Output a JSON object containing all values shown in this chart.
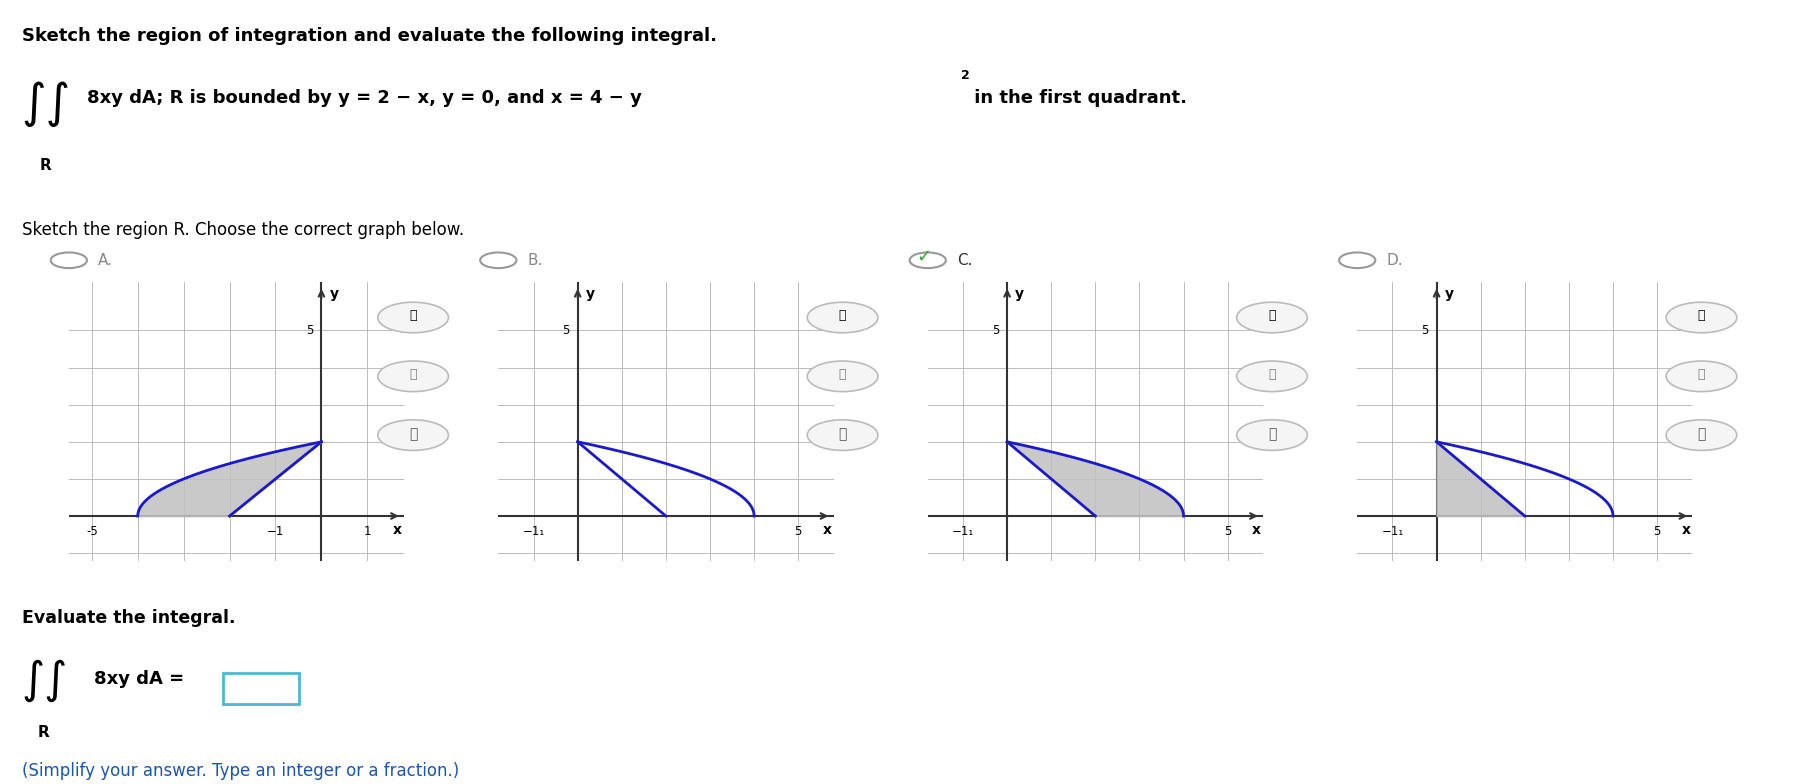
{
  "title": "Sketch the region of integration and evaluate the following integral.",
  "section2": "Sketch the region R. Choose the correct graph below.",
  "evaluate": "Evaluate the integral.",
  "simplify": "(Simplify your answer. Type an integer or a fraction.)",
  "bg": "#ffffff",
  "grid_color": "#bbbbbb",
  "line_color": "#1a1acd",
  "fill_color": "#c0c0c0",
  "text_color": "#000000",
  "check_color": "#2ea82e",
  "radio_gray": "#888888",
  "answer_box_color": "#4db8d4",
  "panels": [
    {
      "label": "A",
      "xlim": [
        -5.5,
        1.8
      ],
      "ylim": [
        -1.2,
        6.3
      ],
      "xtick_vals": [
        -5,
        -1,
        1
      ],
      "xtick_labels": [
        "-5",
        "-1",
        "1"
      ],
      "ytick_val": 5,
      "fill": "A",
      "selected": false
    },
    {
      "label": "B",
      "xlim": [
        -1.8,
        5.8
      ],
      "ylim": [
        -1.2,
        6.3
      ],
      "xtick_vals": [
        -1,
        5
      ],
      "xtick_labels": [
        "-1|",
        "5"
      ],
      "ytick_val": 5,
      "fill": "B",
      "selected": false
    },
    {
      "label": "C",
      "xlim": [
        -1.8,
        5.8
      ],
      "ylim": [
        -1.2,
        6.3
      ],
      "xtick_vals": [
        -1,
        5
      ],
      "xtick_labels": [
        "-1|",
        "5"
      ],
      "ytick_val": 5,
      "fill": "C",
      "selected": true
    },
    {
      "label": "D",
      "xlim": [
        -1.8,
        5.8
      ],
      "ylim": [
        -1.2,
        6.3
      ],
      "xtick_vals": [
        -1,
        5
      ],
      "xtick_labels": [
        "-1|",
        "5"
      ],
      "ytick_val": 5,
      "fill": "D",
      "selected": false
    }
  ]
}
